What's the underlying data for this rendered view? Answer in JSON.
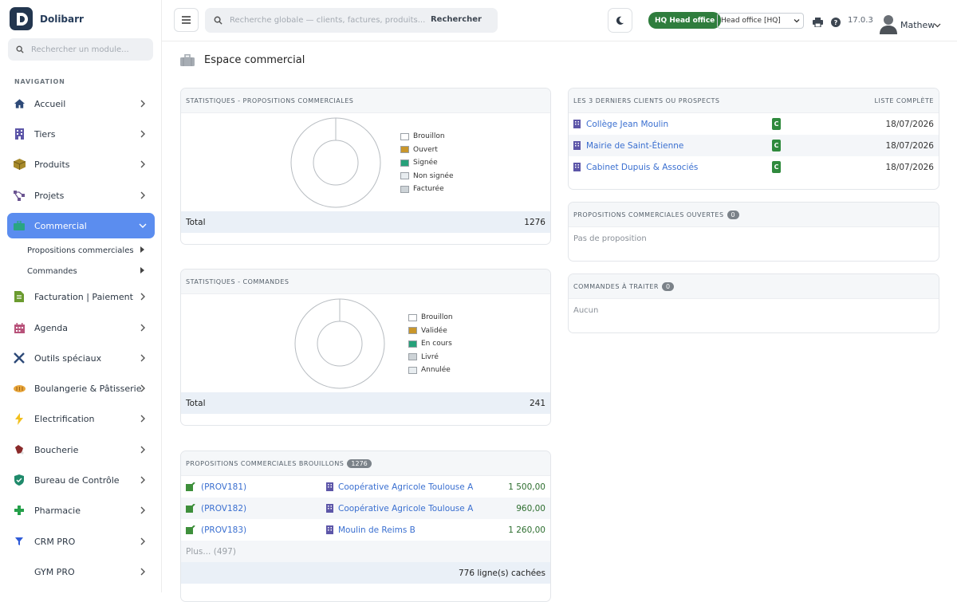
{
  "app": {
    "name": "Dolibarr"
  },
  "sidebar": {
    "search_placeholder": "Rechercher un module...",
    "nav_title": "NAVIGATION",
    "items": [
      {
        "label": "Accueil",
        "icon": "home-icon"
      },
      {
        "label": "Tiers",
        "icon": "building-icon"
      },
      {
        "label": "Produits",
        "icon": "box-icon"
      },
      {
        "label": "Projets",
        "icon": "project-icon"
      },
      {
        "label": "Commercial",
        "icon": "briefcase-icon",
        "active": true
      },
      {
        "label": "Facturation | Paiement",
        "icon": "invoice-icon"
      },
      {
        "label": "Agenda",
        "icon": "calendar-icon"
      },
      {
        "label": "Outils spéciaux",
        "icon": "tools-icon"
      },
      {
        "label": "Boulangerie & Pâtisserie",
        "icon": "bread-icon"
      },
      {
        "label": "Electrification",
        "icon": "bolt-icon"
      },
      {
        "label": "Boucherie",
        "icon": "meat-icon"
      },
      {
        "label": "Bureau de Contrôle",
        "icon": "shield-icon"
      },
      {
        "label": "Pharmacie",
        "icon": "cross-icon"
      },
      {
        "label": "CRM PRO",
        "icon": "funnel-icon"
      },
      {
        "label": "GYM PRO",
        "icon": ""
      }
    ],
    "subitems": [
      {
        "label": "Propositions commerciales"
      },
      {
        "label": "Commandes"
      }
    ]
  },
  "topbar": {
    "search_placeholder": "Recherche globale — clients, factures, produits...",
    "search_button": "Rechercher",
    "hq_badge": "HQ  Head office",
    "entity_selected": "Head office [HQ]",
    "version": "17.0.3",
    "user": "Mathew"
  },
  "page": {
    "title": "Espace commercial"
  },
  "colors": {
    "accent": "#5b8def",
    "brouillon": "#ffffff",
    "ouvert": "#c9962b",
    "signee": "#26a17a",
    "non_signee": "#e8edf0",
    "facturee": "#cdd3d7",
    "validee": "#c9962b",
    "en_cours": "#26a17a",
    "livre": "#cdd3d7",
    "annulee": "#e8edf0"
  },
  "prop_stats": {
    "header": "STATISTIQUES - PROPOSITIONS COMMERCIALES",
    "legend": [
      {
        "label": "Brouillon",
        "color": "#ffffff"
      },
      {
        "label": "Ouvert",
        "color": "#c9962b"
      },
      {
        "label": "Signée",
        "color": "#26a17a"
      },
      {
        "label": "Non signée",
        "color": "#e8edf0"
      },
      {
        "label": "Facturée",
        "color": "#cdd3d7"
      }
    ],
    "total_label": "Total",
    "total_value": "1276"
  },
  "order_stats": {
    "header": "STATISTIQUES - COMMANDES",
    "legend": [
      {
        "label": "Brouillon",
        "color": "#ffffff"
      },
      {
        "label": "Validée",
        "color": "#c9962b"
      },
      {
        "label": "En cours",
        "color": "#26a17a"
      },
      {
        "label": "Livré",
        "color": "#cdd3d7"
      },
      {
        "label": "Annulée",
        "color": "#e8edf0"
      }
    ],
    "total_label": "Total",
    "total_value": "241"
  },
  "drafts": {
    "header": "PROPOSITIONS COMMERCIALES BROUILLONS",
    "count": "1276",
    "rows": [
      {
        "ref": "(PROV181)",
        "client": "Coopérative Agricole Toulouse A",
        "amount": "1 500,00"
      },
      {
        "ref": "(PROV182)",
        "client": "Coopérative Agricole Toulouse A",
        "amount": "960,00"
      },
      {
        "ref": "(PROV183)",
        "client": "Moulin de Reims B",
        "amount": "1 260,00"
      }
    ],
    "more": "Plus... (497)",
    "hidden": "776 ligne(s) cachées"
  },
  "last_clients": {
    "header": "LES 3 DERNIERS CLIENTS OU PROSPECTS",
    "link": "LISTE COMPLÈTE",
    "rows": [
      {
        "name": "Collège Jean Moulin",
        "badge": "C",
        "date": "18/07/2026"
      },
      {
        "name": "Mairie de Saint-Étienne",
        "badge": "C",
        "date": "18/07/2026"
      },
      {
        "name": "Cabinet Dupuis & Associés",
        "badge": "C",
        "date": "18/07/2026"
      }
    ]
  },
  "open_props": {
    "header": "PROPOSITIONS COMMERCIALES OUVERTES",
    "count": "0",
    "empty": "Pas de proposition"
  },
  "orders_todo": {
    "header": "COMMANDES À TRAITER",
    "count": "0",
    "empty": "Aucun"
  }
}
